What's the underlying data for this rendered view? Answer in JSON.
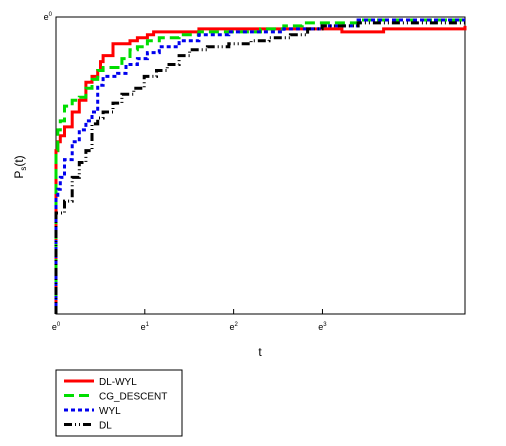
{
  "chart_data": {
    "type": "line",
    "step": true,
    "x_scale": "log-e",
    "xlabel": "t",
    "ylabel": "P",
    "ylabel_sub": "s",
    "ylabel_suffix": "(t)",
    "xlim": [
      1,
      100
    ],
    "ylim": [
      0,
      1
    ],
    "x_ticks": [
      {
        "value": 1,
        "base": "e",
        "exp": "0"
      },
      {
        "value": 2.718,
        "base": "e",
        "exp": "1"
      },
      {
        "value": 7.389,
        "base": "e",
        "exp": "2"
      },
      {
        "value": 20.09,
        "base": "e",
        "exp": "3"
      }
    ],
    "y_ticks": [
      {
        "value": 1,
        "base": "e",
        "exp": "0"
      }
    ],
    "grid": false,
    "legend": "bottom-left",
    "series": [
      {
        "name": "DL-WYL",
        "color": "#ff0000",
        "dash": "solid",
        "points": [
          [
            1,
            0
          ],
          [
            1,
            0.55
          ],
          [
            1.02,
            0.58
          ],
          [
            1.05,
            0.6
          ],
          [
            1.1,
            0.63
          ],
          [
            1.2,
            0.68
          ],
          [
            1.3,
            0.72
          ],
          [
            1.4,
            0.78
          ],
          [
            1.5,
            0.8
          ],
          [
            1.6,
            0.82
          ],
          [
            1.65,
            0.85
          ],
          [
            1.7,
            0.87
          ],
          [
            1.85,
            0.87
          ],
          [
            1.9,
            0.91
          ],
          [
            2.2,
            0.91
          ],
          [
            2.3,
            0.92
          ],
          [
            2.5,
            0.93
          ],
          [
            2.8,
            0.94
          ],
          [
            3.0,
            0.95
          ],
          [
            4,
            0.95
          ],
          [
            5,
            0.96
          ],
          [
            8,
            0.96
          ],
          [
            20,
            0.96
          ],
          [
            25,
            0.95
          ],
          [
            40,
            0.96
          ],
          [
            100,
            0.97
          ]
        ]
      },
      {
        "name": "CG_DESCENT",
        "color": "#00dd00",
        "dash": "long",
        "points": [
          [
            1,
            0
          ],
          [
            1,
            0.55
          ],
          [
            1.02,
            0.62
          ],
          [
            1.05,
            0.65
          ],
          [
            1.1,
            0.7
          ],
          [
            1.2,
            0.72
          ],
          [
            1.3,
            0.73
          ],
          [
            1.4,
            0.76
          ],
          [
            1.5,
            0.79
          ],
          [
            1.6,
            0.82
          ],
          [
            1.7,
            0.83
          ],
          [
            2,
            0.83
          ],
          [
            2.1,
            0.86
          ],
          [
            2.3,
            0.89
          ],
          [
            2.5,
            0.9
          ],
          [
            2.8,
            0.92
          ],
          [
            3.2,
            0.93
          ],
          [
            4,
            0.94
          ],
          [
            5,
            0.95
          ],
          [
            8,
            0.95
          ],
          [
            10,
            0.96
          ],
          [
            13,
            0.97
          ],
          [
            16,
            0.98
          ],
          [
            20,
            0.98
          ],
          [
            30,
            0.99
          ],
          [
            100,
            0.99
          ]
        ]
      },
      {
        "name": "WYL",
        "color": "#0000ee",
        "dash": "short",
        "points": [
          [
            1,
            0
          ],
          [
            1,
            0.4
          ],
          [
            1.02,
            0.42
          ],
          [
            1.05,
            0.46
          ],
          [
            1.1,
            0.52
          ],
          [
            1.2,
            0.58
          ],
          [
            1.3,
            0.62
          ],
          [
            1.4,
            0.65
          ],
          [
            1.5,
            0.68
          ],
          [
            1.6,
            0.77
          ],
          [
            1.7,
            0.8
          ],
          [
            2,
            0.81
          ],
          [
            2.2,
            0.84
          ],
          [
            2.5,
            0.86
          ],
          [
            2.8,
            0.88
          ],
          [
            3.2,
            0.9
          ],
          [
            4,
            0.92
          ],
          [
            5,
            0.94
          ],
          [
            7,
            0.95
          ],
          [
            10,
            0.95
          ],
          [
            13,
            0.96
          ],
          [
            20,
            0.97
          ],
          [
            30,
            0.99
          ],
          [
            100,
            0.99
          ]
        ]
      },
      {
        "name": "DL",
        "color": "#000000",
        "dash": "dashdot",
        "points": [
          [
            1,
            0
          ],
          [
            1,
            0.34
          ],
          [
            1.05,
            0.34
          ],
          [
            1.1,
            0.38
          ],
          [
            1.2,
            0.46
          ],
          [
            1.3,
            0.51
          ],
          [
            1.4,
            0.55
          ],
          [
            1.5,
            0.64
          ],
          [
            1.6,
            0.66
          ],
          [
            1.7,
            0.68
          ],
          [
            1.9,
            0.71
          ],
          [
            2.1,
            0.74
          ],
          [
            2.4,
            0.76
          ],
          [
            2.7,
            0.8
          ],
          [
            3.1,
            0.82
          ],
          [
            3.5,
            0.84
          ],
          [
            4,
            0.87
          ],
          [
            4.5,
            0.89
          ],
          [
            5.5,
            0.9
          ],
          [
            7,
            0.91
          ],
          [
            9,
            0.92
          ],
          [
            11,
            0.93
          ],
          [
            14,
            0.94
          ],
          [
            17,
            0.96
          ],
          [
            20,
            0.97
          ],
          [
            30,
            0.98
          ],
          [
            100,
            0.99
          ]
        ]
      }
    ]
  }
}
